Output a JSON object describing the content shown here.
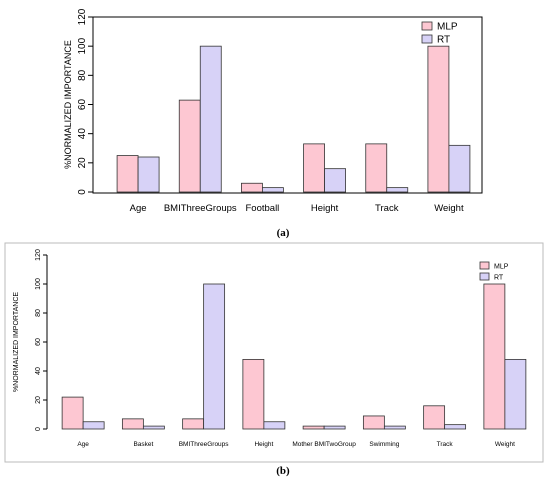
{
  "panel_a_label": "(a)",
  "panel_b_label": "(b)",
  "chart_data": [
    {
      "type": "bar",
      "ylabel": "%NORMALIZED IMPORTANCE",
      "xlabel": "",
      "ylim": [
        0,
        120
      ],
      "yticks": [
        "0",
        "20",
        "40",
        "60",
        "80",
        "100",
        "120"
      ],
      "categories": [
        "Age",
        "BMIThreeGroups",
        "Football",
        "Height",
        "Track",
        "Weight"
      ],
      "series": [
        {
          "name": "MLP",
          "color": "#fdc7d2",
          "values": [
            25,
            63,
            6,
            33,
            33,
            100
          ]
        },
        {
          "name": "RT",
          "color": "#d7d2f7",
          "values": [
            24,
            100,
            3,
            16,
            3,
            32
          ]
        }
      ],
      "legend": "top-right",
      "grid": false
    },
    {
      "type": "bar",
      "ylabel": "%NORMALIZED IMPORTANCE",
      "xlabel": "",
      "ylim": [
        0,
        120
      ],
      "yticks": [
        "0",
        "20",
        "40",
        "60",
        "80",
        "100",
        "120"
      ],
      "categories": [
        "Age",
        "Basket",
        "BMIThreeGroups",
        "Height",
        "Mother BMITwoGroup",
        "Swimming",
        "Track",
        "Weight"
      ],
      "series": [
        {
          "name": "MLP",
          "color": "#fdc7d2",
          "values": [
            22,
            7,
            7,
            48,
            2,
            9,
            16,
            100
          ]
        },
        {
          "name": "RT",
          "color": "#d7d2f7",
          "values": [
            5,
            2,
            100,
            5,
            2,
            2,
            3,
            48
          ]
        }
      ],
      "legend": "top-right",
      "grid": false
    }
  ]
}
